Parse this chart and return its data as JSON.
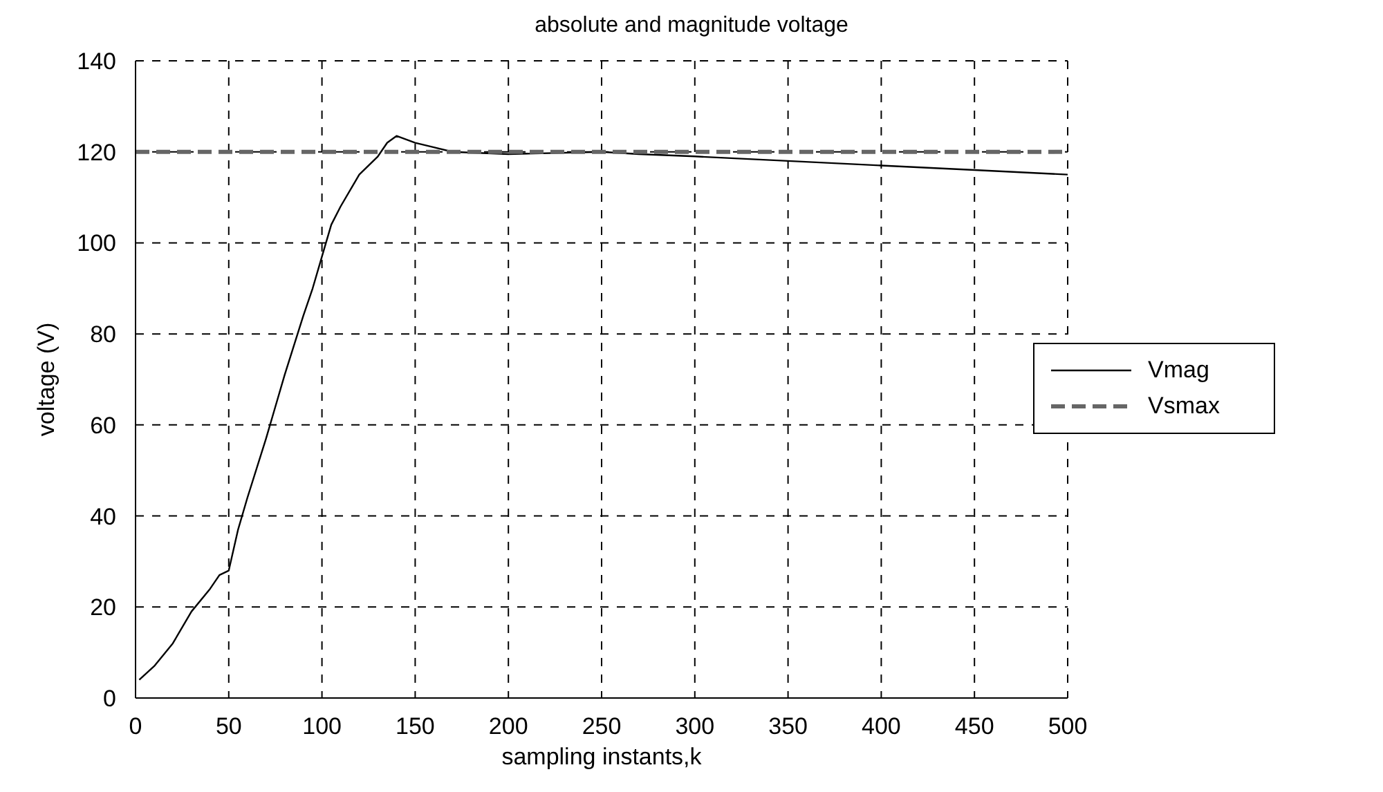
{
  "chart_data": {
    "type": "line",
    "title": "absolute and magnitude voltage",
    "xlabel": "sampling instants,k",
    "ylabel": "voltage (V)",
    "xlim": [
      0,
      500
    ],
    "xticks": [
      0,
      50,
      100,
      150,
      200,
      250,
      300,
      350,
      400,
      450,
      500
    ],
    "ylim": [
      0,
      140
    ],
    "yticks": [
      0,
      20,
      40,
      60,
      80,
      100,
      120,
      140
    ],
    "grid": true,
    "legend": "right",
    "marker": "none",
    "series": [
      {
        "name": "Vmag",
        "color": "#000000",
        "line_style": "solid",
        "x": [
          2,
          10,
          20,
          30,
          40,
          45,
          50,
          55,
          60,
          70,
          75,
          80,
          90,
          95,
          100,
          105,
          110,
          120,
          130,
          135,
          140,
          150,
          160,
          170,
          200,
          250,
          270,
          300,
          350,
          400,
          450,
          500
        ],
        "values": [
          4,
          7,
          12,
          19,
          24,
          27,
          28,
          37,
          44,
          57,
          64,
          71,
          84,
          90,
          97,
          104,
          108,
          115,
          119,
          122,
          123.5,
          122,
          121,
          120,
          119.5,
          120,
          119.5,
          119,
          118,
          117,
          116,
          115
        ]
      },
      {
        "name": "Vsmax",
        "color": "#666666",
        "line_style": "dashed",
        "x": [
          0,
          500
        ],
        "values": [
          120,
          120
        ]
      }
    ]
  }
}
